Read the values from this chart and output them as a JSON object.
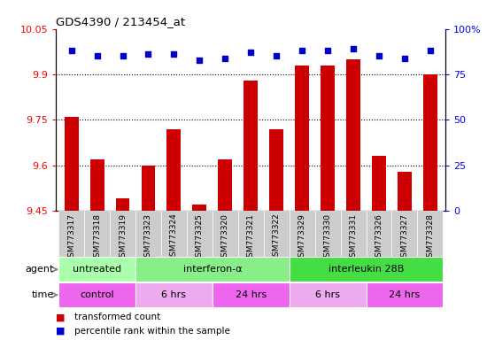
{
  "title": "GDS4390 / 213454_at",
  "samples": [
    "GSM773317",
    "GSM773318",
    "GSM773319",
    "GSM773323",
    "GSM773324",
    "GSM773325",
    "GSM773320",
    "GSM773321",
    "GSM773322",
    "GSM773329",
    "GSM773330",
    "GSM773331",
    "GSM773326",
    "GSM773327",
    "GSM773328"
  ],
  "transformed_count": [
    9.76,
    9.62,
    9.49,
    9.6,
    9.72,
    9.47,
    9.62,
    9.88,
    9.72,
    9.93,
    9.93,
    9.95,
    9.63,
    9.58,
    9.9
  ],
  "percentile_rank": [
    88,
    85,
    85,
    86,
    86,
    83,
    84,
    87,
    85,
    88,
    88,
    89,
    85,
    84,
    88
  ],
  "ylim_left": [
    9.45,
    10.05
  ],
  "ylim_right": [
    0,
    100
  ],
  "yticks_left": [
    9.45,
    9.6,
    9.75,
    9.9,
    10.05
  ],
  "yticks_right": [
    0,
    25,
    50,
    75,
    100
  ],
  "ytick_labels_left": [
    "9.45",
    "9.6",
    "9.75",
    "9.9",
    "10.05"
  ],
  "ytick_labels_right": [
    "0",
    "25",
    "50",
    "75",
    "100%"
  ],
  "dotted_lines": [
    9.6,
    9.75,
    9.9
  ],
  "bar_color": "#cc0000",
  "dot_color": "#0000cc",
  "agent_groups": [
    {
      "label": "untreated",
      "start": 0,
      "end": 3,
      "color": "#aaffaa"
    },
    {
      "label": "interferon-α",
      "start": 3,
      "end": 9,
      "color": "#88ee88"
    },
    {
      "label": "interleukin 28B",
      "start": 9,
      "end": 15,
      "color": "#44dd44"
    }
  ],
  "time_groups": [
    {
      "label": "control",
      "start": 0,
      "end": 3,
      "color": "#ee66ee"
    },
    {
      "label": "6 hrs",
      "start": 3,
      "end": 6,
      "color": "#eeaaee"
    },
    {
      "label": "24 hrs",
      "start": 6,
      "end": 9,
      "color": "#ee66ee"
    },
    {
      "label": "6 hrs",
      "start": 9,
      "end": 12,
      "color": "#eeaaee"
    },
    {
      "label": "24 hrs",
      "start": 12,
      "end": 15,
      "color": "#ee66ee"
    }
  ],
  "legend_items": [
    {
      "color": "#cc0000",
      "label": "transformed count"
    },
    {
      "color": "#0000cc",
      "label": "percentile rank within the sample"
    }
  ],
  "bar_width": 0.55,
  "xticklabel_bg": "#cccccc",
  "plot_bg": "#ffffff"
}
